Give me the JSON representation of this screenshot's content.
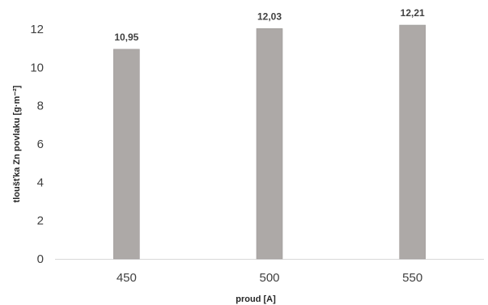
{
  "chart_data": {
    "type": "bar",
    "categories": [
      "450",
      "500",
      "550"
    ],
    "values": [
      10.95,
      12.03,
      12.21
    ],
    "data_labels": [
      "10,95",
      "12,03",
      "12,21"
    ],
    "xlabel": "proud [A]",
    "ylabel": "tloušťka Zn povlaku [g·m⁻²]",
    "ylim": [
      0,
      12
    ],
    "yticks": [
      0,
      2,
      4,
      6,
      8,
      10,
      12
    ],
    "grid": false,
    "legend": "none",
    "colors": {
      "bar": "#ada9a7",
      "bar_edge": "#9f9b99",
      "axis": "#d9d9d9"
    }
  }
}
